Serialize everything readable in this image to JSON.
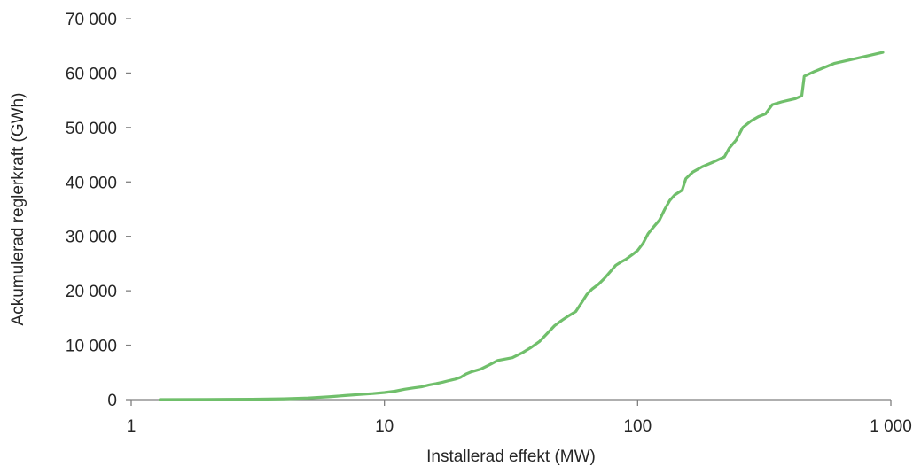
{
  "chart_data": {
    "type": "line",
    "xscale": "log",
    "xlabel": "Installerad effekt (MW)",
    "ylabel": "Ackumulerad reglerkraft (GWh)",
    "xlim": [
      1,
      1000
    ],
    "ylim": [
      0,
      70000
    ],
    "x_ticks": [
      {
        "value": 1,
        "label": "1"
      },
      {
        "value": 10,
        "label": "10"
      },
      {
        "value": 100,
        "label": "100"
      },
      {
        "value": 1000,
        "label": "1 000"
      }
    ],
    "y_ticks": [
      {
        "value": 0,
        "label": "0"
      },
      {
        "value": 10000,
        "label": "10 000"
      },
      {
        "value": 20000,
        "label": "20 000"
      },
      {
        "value": 30000,
        "label": "30 000"
      },
      {
        "value": 40000,
        "label": "40 000"
      },
      {
        "value": 50000,
        "label": "50 000"
      },
      {
        "value": 60000,
        "label": "60 000"
      },
      {
        "value": 70000,
        "label": "70 000"
      }
    ],
    "grid": false,
    "legend": "none",
    "series": [
      {
        "color": "#70bf6b",
        "points": [
          [
            1.3,
            0
          ],
          [
            2,
            20
          ],
          [
            3,
            60
          ],
          [
            4,
            150
          ],
          [
            5,
            300
          ],
          [
            6,
            500
          ],
          [
            7,
            750
          ],
          [
            8,
            950
          ],
          [
            9,
            1100
          ],
          [
            10,
            1300
          ],
          [
            11,
            1550
          ],
          [
            12,
            1900
          ],
          [
            13,
            2150
          ],
          [
            14,
            2350
          ],
          [
            15,
            2700
          ],
          [
            16,
            2950
          ],
          [
            17,
            3200
          ],
          [
            18,
            3500
          ],
          [
            19,
            3750
          ],
          [
            20,
            4100
          ],
          [
            21,
            4700
          ],
          [
            22,
            5100
          ],
          [
            24,
            5600
          ],
          [
            26,
            6400
          ],
          [
            28,
            7200
          ],
          [
            30,
            7450
          ],
          [
            32,
            7700
          ],
          [
            35,
            8600
          ],
          [
            38,
            9600
          ],
          [
            41,
            10700
          ],
          [
            44,
            12200
          ],
          [
            47,
            13600
          ],
          [
            50,
            14500
          ],
          [
            53,
            15300
          ],
          [
            57,
            16200
          ],
          [
            60,
            17800
          ],
          [
            63,
            19300
          ],
          [
            66,
            20300
          ],
          [
            70,
            21200
          ],
          [
            74,
            22300
          ],
          [
            78,
            23500
          ],
          [
            82,
            24700
          ],
          [
            86,
            25300
          ],
          [
            90,
            25800
          ],
          [
            95,
            26600
          ],
          [
            100,
            27400
          ],
          [
            105,
            28700
          ],
          [
            110,
            30500
          ],
          [
            116,
            31800
          ],
          [
            122,
            33000
          ],
          [
            128,
            35000
          ],
          [
            134,
            36600
          ],
          [
            140,
            37600
          ],
          [
            150,
            38500
          ],
          [
            155,
            40600
          ],
          [
            165,
            41800
          ],
          [
            180,
            42800
          ],
          [
            200,
            43700
          ],
          [
            220,
            44600
          ],
          [
            230,
            46200
          ],
          [
            245,
            47700
          ],
          [
            260,
            50000
          ],
          [
            280,
            51200
          ],
          [
            300,
            52000
          ],
          [
            320,
            52500
          ],
          [
            340,
            54200
          ],
          [
            370,
            54700
          ],
          [
            420,
            55300
          ],
          [
            445,
            55800
          ],
          [
            455,
            59400
          ],
          [
            500,
            60300
          ],
          [
            600,
            61800
          ],
          [
            750,
            62800
          ],
          [
            930,
            63800
          ]
        ]
      }
    ]
  }
}
